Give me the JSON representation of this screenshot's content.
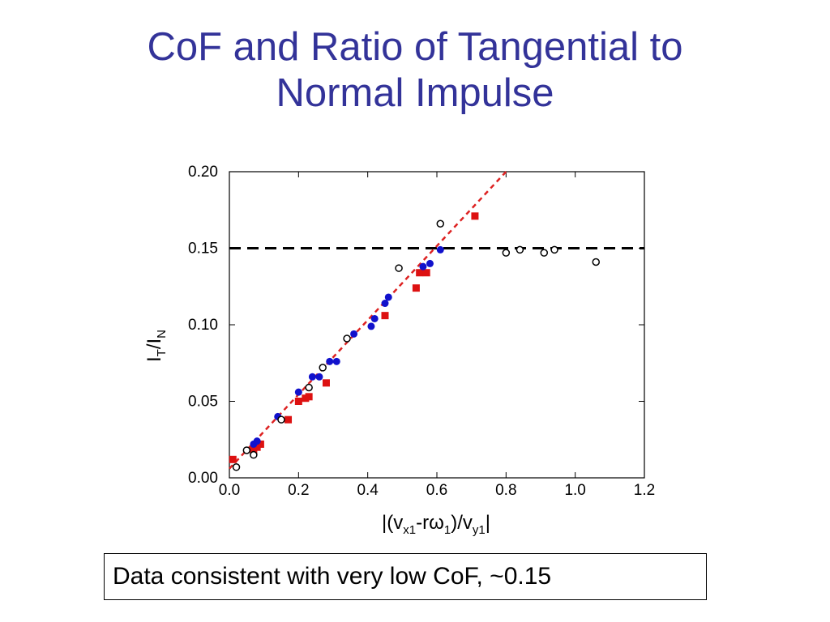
{
  "slide": {
    "title_line1": "CoF and Ratio of Tangential to",
    "title_line2": "Normal Impulse",
    "caption": "Data consistent with very low CoF, ~0.15"
  },
  "chart_data": {
    "type": "scatter",
    "xlabel": "|(v_x1-rω_1)/v_y1|",
    "ylabel": "I_T/I_N",
    "xlim": [
      0.0,
      1.2
    ],
    "ylim": [
      0.0,
      0.2
    ],
    "x_ticks": [
      "0.0",
      "0.2",
      "0.4",
      "0.6",
      "0.8",
      "1.0",
      "1.2"
    ],
    "y_ticks": [
      "0.00",
      "0.05",
      "0.10",
      "0.15",
      "0.20"
    ],
    "series": [
      {
        "marker": "square",
        "color": "#dd1111",
        "points": [
          [
            0.01,
            0.012
          ],
          [
            0.07,
            0.018
          ],
          [
            0.08,
            0.02
          ],
          [
            0.09,
            0.022
          ],
          [
            0.17,
            0.038
          ],
          [
            0.2,
            0.05
          ],
          [
            0.22,
            0.052
          ],
          [
            0.23,
            0.053
          ],
          [
            0.28,
            0.062
          ],
          [
            0.45,
            0.106
          ],
          [
            0.54,
            0.124
          ],
          [
            0.55,
            0.134
          ],
          [
            0.57,
            0.134
          ],
          [
            0.71,
            0.171
          ]
        ]
      },
      {
        "marker": "filled-circle",
        "color": "#1111cc",
        "points": [
          [
            0.07,
            0.022
          ],
          [
            0.08,
            0.024
          ],
          [
            0.14,
            0.04
          ],
          [
            0.2,
            0.056
          ],
          [
            0.24,
            0.066
          ],
          [
            0.26,
            0.066
          ],
          [
            0.29,
            0.076
          ],
          [
            0.31,
            0.076
          ],
          [
            0.36,
            0.094
          ],
          [
            0.41,
            0.099
          ],
          [
            0.42,
            0.104
          ],
          [
            0.45,
            0.114
          ],
          [
            0.46,
            0.118
          ],
          [
            0.56,
            0.138
          ],
          [
            0.58,
            0.14
          ],
          [
            0.61,
            0.149
          ]
        ]
      },
      {
        "marker": "open-circle",
        "color": "#000000",
        "points": [
          [
            0.02,
            0.007
          ],
          [
            0.05,
            0.018
          ],
          [
            0.07,
            0.015
          ],
          [
            0.15,
            0.038
          ],
          [
            0.23,
            0.059
          ],
          [
            0.27,
            0.072
          ],
          [
            0.34,
            0.091
          ],
          [
            0.49,
            0.137
          ],
          [
            0.61,
            0.166
          ],
          [
            0.8,
            0.147
          ],
          [
            0.84,
            0.149
          ],
          [
            0.91,
            0.147
          ],
          [
            0.94,
            0.149
          ],
          [
            1.06,
            0.141
          ]
        ]
      }
    ],
    "reference_lines": [
      {
        "kind": "horizontal-dashed",
        "color": "#000000",
        "y": 0.15,
        "x_range": [
          0.0,
          1.2
        ]
      },
      {
        "kind": "fit-dashed",
        "color": "#dd2222",
        "from": [
          0.0,
          0.006
        ],
        "to": [
          0.8,
          0.2
        ]
      }
    ],
    "grid": false
  }
}
